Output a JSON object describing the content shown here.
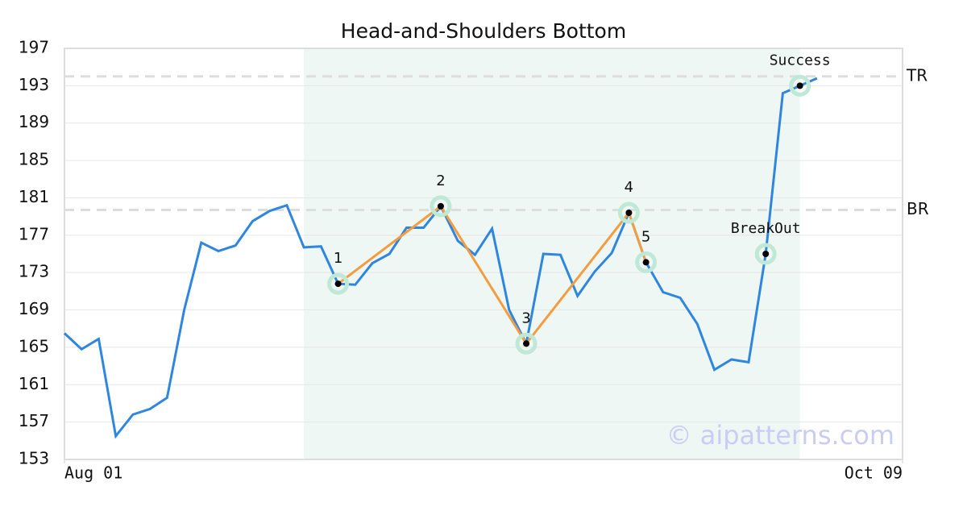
{
  "chart_data": {
    "type": "line",
    "title": "Head-and-Shoulders Bottom",
    "watermark": "© aipatterns.com",
    "x": [
      0,
      1,
      2,
      3,
      4,
      5,
      6,
      7,
      8,
      9,
      10,
      11,
      12,
      13,
      14,
      15,
      16,
      17,
      18,
      19,
      20,
      21,
      22,
      23,
      24,
      25,
      26,
      27,
      28,
      29,
      30,
      31,
      32,
      33,
      34,
      35,
      36,
      37,
      38,
      39,
      40,
      41,
      42,
      43,
      44
    ],
    "series": [
      {
        "color": "#2e86de",
        "values": [
          166.5,
          164.8,
          165.9,
          155.5,
          157.8,
          158.4,
          159.6,
          169.0,
          176.2,
          175.3,
          175.9,
          178.5,
          179.6,
          180.2,
          175.7,
          175.8,
          171.8,
          171.7,
          174.0,
          175.0,
          177.8,
          177.8,
          180.1,
          176.4,
          174.9,
          177.7,
          169.0,
          165.4,
          175.0,
          174.9,
          170.5,
          173.1,
          175.1,
          179.4,
          174.1,
          170.9,
          170.3,
          167.5,
          162.6,
          163.7,
          163.4,
          175.0,
          192.2,
          193.0,
          193.8
        ]
      }
    ],
    "pattern": {
      "color": "#f39c40",
      "x": [
        16,
        22,
        27,
        33,
        34
      ],
      "values": [
        171.8,
        180.1,
        165.4,
        179.4,
        174.1
      ],
      "labels": [
        "1",
        "2",
        "3",
        "4",
        "5"
      ]
    },
    "signals": {
      "x": [
        41,
        43
      ],
      "values": [
        175.0,
        193.0
      ],
      "labels": [
        "BreakOut",
        "Success"
      ]
    },
    "region": {
      "xrange": [
        14,
        43
      ],
      "color": "#eef7f3"
    },
    "ref_lines": [
      {
        "name": "TR",
        "value": 194.0
      },
      {
        "name": "BR",
        "value": 179.7
      }
    ],
    "xlim": [
      0,
      49
    ],
    "xticks": [
      {
        "value": 0,
        "label": "Aug 01"
      },
      {
        "value": 49,
        "label": "Oct 09"
      }
    ],
    "ylim": [
      153,
      197
    ],
    "yticks": [
      153,
      157,
      161,
      165,
      169,
      173,
      177,
      181,
      185,
      189,
      193,
      197
    ],
    "grid": true
  }
}
